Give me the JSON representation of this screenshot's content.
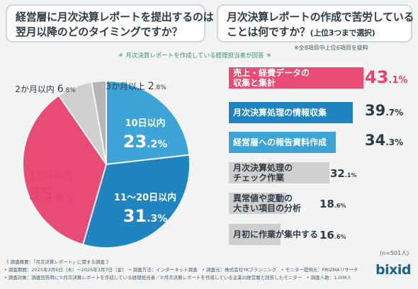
{
  "questions": {
    "left_line1": "経営層に月次決算レポートを提出するのは",
    "left_line2": "翌月以降のどのタイミングですか？",
    "right_line1": "月次決算レポートの作成で苦労している",
    "right_line2": "ことは何ですか？",
    "right_line2_small": "(上位3つまで選択)"
  },
  "notes": {
    "respondents": "＊ 月次決算レポートを作成している経理担当者が回答 ＊",
    "top6": "※全8項目中上位6項目を抜粋",
    "n": "(n=501人)"
  },
  "footer": {
    "line1": "《 調査概要：「月次決算レポート」に関する調査 》",
    "line2": "• 調査期間：2025年3月6日（木）〜2025年3月7日（金）　• 調査方法：インターネット調査　• 調査元：株式会社YKプランニング　• モニター提供元：PRIZMAリサーチ",
    "line3": "• 調査対象：調査回答時に①月次決算レポートを作成している経理担当者／②月次決算レポートを作成している企業の経営層と回答したモニター　• 調査人数：1,006人"
  },
  "logo": "bixid",
  "colors": {
    "pink": "#e84c74",
    "blue_dark": "#1f84bf",
    "blue_light": "#3ea4d7",
    "gray": "#b5b5b5",
    "gray_light": "#cfcfcf",
    "value_pink": "#e8436f",
    "value_dark": "#2f3b46"
  },
  "chart_data": [
    {
      "type": "pie",
      "categories": [
        "10日以内",
        "11〜20日以内",
        "1か月以内",
        "2か月以内",
        "3か月以上"
      ],
      "values": [
        23.2,
        31.3,
        35.9,
        6.8,
        2.8
      ],
      "labels": [
        {
          "name": "10日以内",
          "int": "23",
          "dec": ".2",
          "pct": "%"
        },
        {
          "name": "11〜20日以内",
          "int": "31",
          "dec": ".3",
          "pct": "%"
        },
        {
          "name": "1か月以内",
          "int": "35",
          "dec": ".9",
          "pct": "%"
        },
        {
          "name": "2か月以内",
          "int": "6",
          "dec": ".8",
          "pct": "%"
        },
        {
          "name": "3か月以上",
          "int": "2",
          "dec": ".8",
          "pct": "%"
        }
      ],
      "colors": [
        "#3ea4d7",
        "#1f84bf",
        "#e84c74",
        "#cfcfcf",
        "#b5b5b5"
      ]
    },
    {
      "type": "bar",
      "orientation": "horizontal",
      "categories": [
        "売上・経費データの\n収集と集計",
        "月次決算処理の情報収集",
        "経営層への報告資料作成",
        "月次決算処理の\nチェック作業",
        "異常値や変動の\n大きい項目の分析",
        "月初に作業が集中する"
      ],
      "values": [
        43.1,
        39.7,
        34.3,
        32.1,
        18.6,
        16.6
      ],
      "value_int": [
        "43",
        "39",
        "34",
        "32",
        "18",
        "16"
      ],
      "value_dec": [
        ".1",
        ".7",
        ".3",
        ".1",
        ".6",
        ".6"
      ],
      "unit": "%",
      "colors": [
        "#e84c74",
        "#1f84bf",
        "#3ea4d7",
        "#cfcfcf",
        "#cfcfcf",
        "#cfcfcf"
      ],
      "value_colors": [
        "#e8436f",
        "#2f3b46",
        "#2f3b46",
        "#2f3b46",
        "#2f3b46",
        "#2f3b46"
      ],
      "label_colors": [
        "#ffffff",
        "#ffffff",
        "#ffffff",
        "#2f3b46",
        "#2f3b46",
        "#2f3b46"
      ]
    }
  ]
}
